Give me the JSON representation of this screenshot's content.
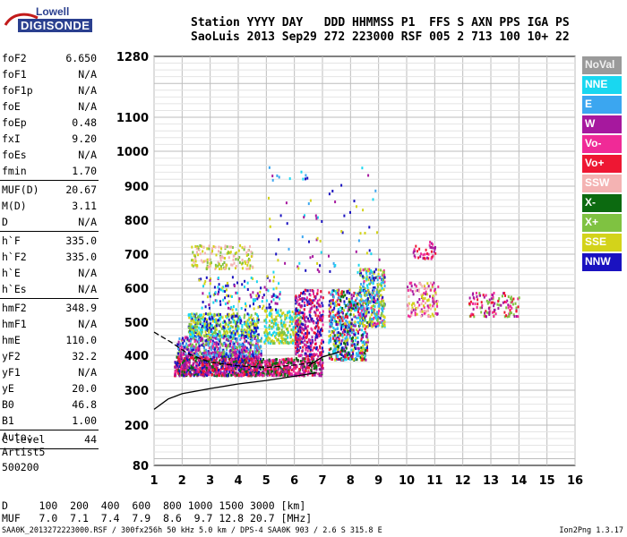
{
  "logo": {
    "line1": "Lowell",
    "line2": "DIGISONDE"
  },
  "header": {
    "labels": "Station YYYY DAY   DDD HHMMSS P1  FFS S AXN PPS IGA PS",
    "values": "SaoLuis 2013 Sep29 272 223000 RSF 005 2 713 100 10+ 22"
  },
  "params": [
    {
      "k": "foF2",
      "v": "6.650"
    },
    {
      "k": "foF1",
      "v": "N/A"
    },
    {
      "k": "foF1p",
      "v": "N/A"
    },
    {
      "k": "foE",
      "v": "N/A"
    },
    {
      "k": "foEp",
      "v": "0.48"
    },
    {
      "k": "fxI",
      "v": "9.20"
    },
    {
      "k": "foEs",
      "v": "N/A"
    },
    {
      "k": "fmin",
      "v": "1.70"
    },
    {
      "sep": true
    },
    {
      "k": "MUF(D)",
      "v": "20.67"
    },
    {
      "k": "M(D)",
      "v": "3.11"
    },
    {
      "k": "D",
      "v": "N/A"
    },
    {
      "sep": true
    },
    {
      "k": "h`F",
      "v": "335.0"
    },
    {
      "k": "h`F2",
      "v": "335.0"
    },
    {
      "k": "h`E",
      "v": "N/A"
    },
    {
      "k": "h`Es",
      "v": "N/A"
    },
    {
      "sep": true
    },
    {
      "k": "hmF2",
      "v": "348.9"
    },
    {
      "k": "hmF1",
      "v": "N/A"
    },
    {
      "k": "hmE",
      "v": "110.0"
    },
    {
      "k": "yF2",
      "v": "32.2"
    },
    {
      "k": "yF1",
      "v": "N/A"
    },
    {
      "k": "yE",
      "v": "20.0"
    },
    {
      "k": "B0",
      "v": "46.8"
    },
    {
      "k": "B1",
      "v": "1.00"
    },
    {
      "sep": true
    },
    {
      "k": "C-level",
      "v": "44"
    },
    {
      "sep": true
    }
  ],
  "auto": [
    "Auto:",
    "Artist5",
    "500200"
  ],
  "footer": {
    "d_line": "D     100  200  400  600  800 1000 1500 3000 [km]",
    "muf_line": "MUF   7.0  7.1  7.4  7.9  8.6  9.7 12.8 20.7 [MHz]"
  },
  "bottom": {
    "left": "SAA0K_2013272223000.RSF / 300fx256h 50 kHz 5.0 km / DPS-4 SAA0K 903 / 2.6 S 315.8 E",
    "right": "Ion2Png 1.3.17"
  },
  "legend": [
    {
      "label": "NoVal",
      "color": "#9a9a9a"
    },
    {
      "label": "NNE",
      "color": "#19d7f0"
    },
    {
      "label": "E",
      "color": "#3ba6f0"
    },
    {
      "label": "W",
      "color": "#a6189e"
    },
    {
      "label": "Vo-",
      "color": "#f02a97"
    },
    {
      "label": "Vo+",
      "color": "#ee1733"
    },
    {
      "label": "SSW",
      "color": "#f4b3b3"
    },
    {
      "label": "X-",
      "color": "#0c6a10"
    },
    {
      "label": "X+",
      "color": "#7fc241"
    },
    {
      "label": "SSE",
      "color": "#d3d31a"
    },
    {
      "label": "NNW",
      "color": "#1a12c0"
    }
  ],
  "chart_data": {
    "type": "scatter",
    "x_ticks": [
      1,
      2,
      3,
      4,
      5,
      6,
      7,
      8,
      9,
      10,
      11,
      12,
      13,
      14,
      15,
      16
    ],
    "y_ticks": [
      80,
      200,
      300,
      400,
      500,
      600,
      700,
      800,
      900,
      1000,
      1100,
      1280
    ],
    "xlim": [
      1,
      16
    ],
    "ylim_ticks": "nonlinear height axis (km)",
    "clusters": [
      {
        "x": [
          1.7,
          4.8
        ],
        "y": [
          345,
          400
        ],
        "n": 900,
        "colors": [
          "#ee1733",
          "#a6189e",
          "#f02a97",
          "#0c6a10",
          "#1a12c0"
        ]
      },
      {
        "x": [
          1.8,
          4.8
        ],
        "y": [
          400,
          460
        ],
        "n": 500,
        "colors": [
          "#a6189e",
          "#1a12c0",
          "#f02a97",
          "#7fc241",
          "#3ba6f0"
        ]
      },
      {
        "x": [
          2.2,
          4.7
        ],
        "y": [
          460,
          530
        ],
        "n": 450,
        "colors": [
          "#d3d31a",
          "#7fc241",
          "#19d7f0",
          "#1a12c0"
        ]
      },
      {
        "x": [
          2.3,
          4.5
        ],
        "y": [
          660,
          730
        ],
        "n": 160,
        "colors": [
          "#d3d31a",
          "#7fc241",
          "#f4b3b3"
        ]
      },
      {
        "x": [
          2.5,
          5.5
        ],
        "y": [
          540,
          640
        ],
        "n": 140,
        "colors": [
          "#1a12c0",
          "#a6189e",
          "#d3d31a",
          "#19d7f0"
        ]
      },
      {
        "x": [
          4.8,
          7.0
        ],
        "y": [
          345,
          395
        ],
        "n": 400,
        "colors": [
          "#ee1733",
          "#a6189e",
          "#0c6a10",
          "#f02a97"
        ]
      },
      {
        "x": [
          4.9,
          6.2
        ],
        "y": [
          440,
          540
        ],
        "n": 250,
        "colors": [
          "#d3d31a",
          "#7fc241",
          "#19d7f0"
        ]
      },
      {
        "x": [
          6.0,
          7.0
        ],
        "y": [
          400,
          600
        ],
        "n": 350,
        "colors": [
          "#ee1733",
          "#f02a97",
          "#a6189e",
          "#1a12c0"
        ]
      },
      {
        "x": [
          7.2,
          8.6
        ],
        "y": [
          390,
          600
        ],
        "n": 600,
        "colors": [
          "#1a12c0",
          "#3ba6f0",
          "#19d7f0",
          "#d3d31a",
          "#a6189e",
          "#ee1733",
          "#0c6a10"
        ]
      },
      {
        "x": [
          8.3,
          9.2
        ],
        "y": [
          490,
          660
        ],
        "n": 350,
        "colors": [
          "#d3d31a",
          "#7fc241",
          "#f02a97",
          "#19d7f0",
          "#3ba6f0",
          "#1a12c0"
        ]
      },
      {
        "x": [
          10.0,
          11.1
        ],
        "y": [
          520,
          620
        ],
        "n": 130,
        "colors": [
          "#f4b3b3",
          "#d3d31a",
          "#a6189e",
          "#f02a97"
        ]
      },
      {
        "x": [
          12.2,
          14.0
        ],
        "y": [
          520,
          590
        ],
        "n": 120,
        "colors": [
          "#ee1733",
          "#f02a97",
          "#a6189e",
          "#7fc241"
        ]
      },
      {
        "x": [
          5.0,
          9.0
        ],
        "y": [
          650,
          960
        ],
        "n": 80,
        "colors": [
          "#3ba6f0",
          "#19d7f0",
          "#d3d31a",
          "#a6189e",
          "#1a12c0"
        ]
      },
      {
        "x": [
          10.2,
          11.0
        ],
        "y": [
          690,
          740
        ],
        "n": 40,
        "colors": [
          "#a6189e",
          "#ee1733",
          "#f02a97"
        ]
      }
    ],
    "traces": [
      {
        "name": "profile",
        "points": [
          [
            1.0,
            245
          ],
          [
            1.5,
            275
          ],
          [
            2.0,
            290
          ],
          [
            3.0,
            305
          ],
          [
            4.0,
            318
          ],
          [
            5.0,
            328
          ],
          [
            6.0,
            340
          ],
          [
            6.8,
            350
          ]
        ]
      },
      {
        "name": "virtual-height",
        "points": [
          [
            1.0,
            470
          ],
          [
            1.6,
            440
          ],
          [
            2.2,
            405
          ],
          [
            3.0,
            380
          ],
          [
            4.0,
            370
          ],
          [
            5.0,
            365
          ],
          [
            6.0,
            372
          ],
          [
            6.7,
            380
          ]
        ]
      },
      {
        "name": "x-trace",
        "points": [
          [
            6.5,
            370
          ],
          [
            7.0,
            395
          ],
          [
            7.6,
            410
          ]
        ]
      }
    ]
  }
}
